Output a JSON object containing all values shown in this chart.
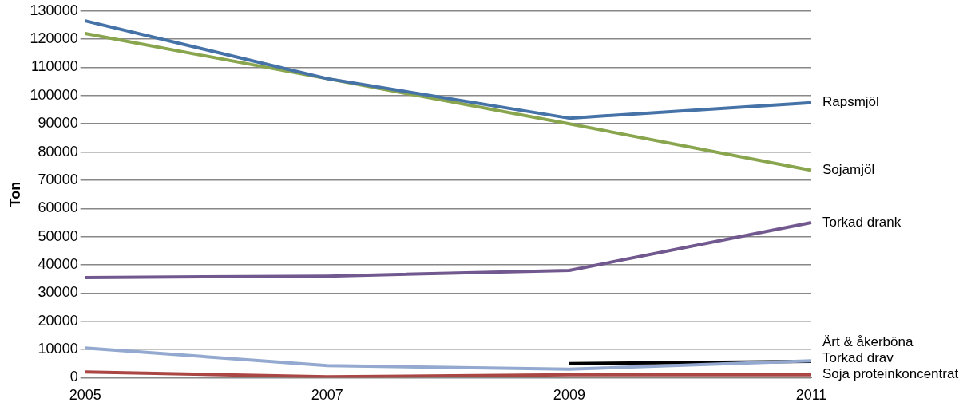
{
  "chart_data": {
    "type": "line",
    "ylabel": "Ton",
    "categories": [
      "2005",
      "2007",
      "2009",
      "2011"
    ],
    "ylim": [
      0,
      130000
    ],
    "yticks": [
      0,
      10000,
      20000,
      30000,
      40000,
      50000,
      60000,
      70000,
      80000,
      90000,
      100000,
      110000,
      120000,
      130000
    ],
    "grid": "y",
    "legend": false,
    "marker": "none",
    "line_style": "solid",
    "series": [
      {
        "name": "Rapsmjöl",
        "color": "#4572a7",
        "values": [
          126500,
          106000,
          92000,
          97500
        ]
      },
      {
        "name": "Sojamjöl",
        "color": "#89a54e",
        "values": [
          122000,
          106000,
          90000,
          73500
        ]
      },
      {
        "name": "Torkad drank",
        "color": "#71588f",
        "values": [
          35500,
          36000,
          38000,
          55000
        ]
      },
      {
        "name": "Ärt & åkerböna",
        "color": "#93a9cf",
        "values": [
          10500,
          4300,
          3000,
          6000
        ]
      },
      {
        "name": "Torkad drav",
        "color": "#000000",
        "values": [
          null,
          null,
          5000,
          5800
        ]
      },
      {
        "name": "Soja proteinkoncentrat",
        "color": "#aa4643",
        "values": [
          2000,
          300,
          1000,
          1000
        ]
      }
    ]
  }
}
